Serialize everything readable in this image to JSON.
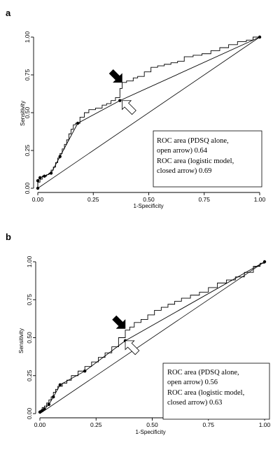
{
  "chart_data": [
    {
      "panel_label": "a",
      "type": "line",
      "xlabel": "1-Specificity",
      "ylabel": "Sensitivity",
      "xlim": [
        0,
        1
      ],
      "ylim": [
        0,
        1
      ],
      "xticks": [
        "0.00",
        "0.25",
        "0.50",
        "0.75",
        "1.00"
      ],
      "yticks": [
        "0.00",
        "0.25",
        "0.50",
        "0.75",
        "1.00"
      ],
      "annotation_lines": [
        "ROC area (PDSQ alone,",
        "open arrow) 0.64",
        "ROC area (logistic model,",
        "closed arrow) 0.69"
      ],
      "series": [
        {
          "style": "step",
          "points": [
            [
              0,
              0
            ],
            [
              0,
              0.04
            ],
            [
              0.01,
              0.04
            ],
            [
              0.01,
              0.06
            ],
            [
              0.02,
              0.06
            ],
            [
              0.02,
              0.08
            ],
            [
              0.03,
              0.08
            ],
            [
              0.04,
              0.09
            ],
            [
              0.05,
              0.1
            ],
            [
              0.06,
              0.12
            ],
            [
              0.07,
              0.14
            ],
            [
              0.08,
              0.17
            ],
            [
              0.09,
              0.2
            ],
            [
              0.1,
              0.23
            ],
            [
              0.11,
              0.26
            ],
            [
              0.12,
              0.29
            ],
            [
              0.13,
              0.32
            ],
            [
              0.14,
              0.36
            ],
            [
              0.15,
              0.39
            ],
            [
              0.16,
              0.42
            ],
            [
              0.17,
              0.43
            ],
            [
              0.19,
              0.47
            ],
            [
              0.21,
              0.5
            ],
            [
              0.23,
              0.52
            ],
            [
              0.26,
              0.53
            ],
            [
              0.29,
              0.55
            ],
            [
              0.31,
              0.56
            ],
            [
              0.33,
              0.58
            ],
            [
              0.35,
              0.6
            ],
            [
              0.37,
              0.66
            ],
            [
              0.38,
              0.7
            ],
            [
              0.4,
              0.71
            ],
            [
              0.43,
              0.73
            ],
            [
              0.45,
              0.74
            ],
            [
              0.48,
              0.77
            ],
            [
              0.51,
              0.8
            ],
            [
              0.54,
              0.81
            ],
            [
              0.57,
              0.82
            ],
            [
              0.6,
              0.83
            ],
            [
              0.63,
              0.84
            ],
            [
              0.66,
              0.87
            ],
            [
              0.7,
              0.88
            ],
            [
              0.74,
              0.89
            ],
            [
              0.78,
              0.91
            ],
            [
              0.82,
              0.93
            ],
            [
              0.86,
              0.95
            ],
            [
              0.9,
              0.97
            ],
            [
              0.94,
              0.98
            ],
            [
              0.97,
              1.0
            ],
            [
              1.0,
              1.0
            ]
          ]
        },
        {
          "style": "markers",
          "points": [
            [
              0,
              0
            ],
            [
              0,
              0.05
            ],
            [
              0.01,
              0.07
            ],
            [
              0.03,
              0.08
            ],
            [
              0.06,
              0.1
            ],
            [
              0.1,
              0.21
            ],
            [
              0.18,
              0.43
            ],
            [
              0.37,
              0.58
            ],
            [
              1,
              1
            ]
          ]
        },
        {
          "style": "reference",
          "points": [
            [
              0,
              0
            ],
            [
              1,
              1
            ]
          ]
        }
      ],
      "arrows": [
        {
          "kind": "closed",
          "points_to": [
            0.38,
            0.7
          ]
        },
        {
          "kind": "open",
          "points_to": [
            0.38,
            0.58
          ]
        }
      ]
    },
    {
      "panel_label": "b",
      "type": "line",
      "xlabel": "1-Specificity",
      "ylabel": "Sensitivity",
      "xlim": [
        0,
        1
      ],
      "ylim": [
        0,
        1
      ],
      "xticks": [
        "0.00",
        "0.25",
        "0.50",
        "0.75",
        "1.00"
      ],
      "yticks": [
        "0.00",
        "0.25",
        "0.50",
        "0.75",
        "1.00"
      ],
      "annotation_lines": [
        "ROC area (PDSQ alone,",
        "open arrow) 0.56",
        "ROC area (logistic model,",
        "closed arrow) 0.63"
      ],
      "series": [
        {
          "style": "step",
          "points": [
            [
              0,
              0
            ],
            [
              0,
              0.02
            ],
            [
              0.01,
              0.02
            ],
            [
              0.01,
              0.04
            ],
            [
              0.02,
              0.05
            ],
            [
              0.03,
              0.07
            ],
            [
              0.04,
              0.09
            ],
            [
              0.05,
              0.11
            ],
            [
              0.06,
              0.14
            ],
            [
              0.07,
              0.16
            ],
            [
              0.08,
              0.18
            ],
            [
              0.1,
              0.2
            ],
            [
              0.12,
              0.22
            ],
            [
              0.14,
              0.25
            ],
            [
              0.17,
              0.28
            ],
            [
              0.2,
              0.31
            ],
            [
              0.23,
              0.34
            ],
            [
              0.26,
              0.37
            ],
            [
              0.29,
              0.4
            ],
            [
              0.32,
              0.44
            ],
            [
              0.35,
              0.5
            ],
            [
              0.38,
              0.55
            ],
            [
              0.4,
              0.57
            ],
            [
              0.42,
              0.6
            ],
            [
              0.45,
              0.62
            ],
            [
              0.48,
              0.65
            ],
            [
              0.51,
              0.68
            ],
            [
              0.54,
              0.7
            ],
            [
              0.57,
              0.72
            ],
            [
              0.6,
              0.74
            ],
            [
              0.63,
              0.76
            ],
            [
              0.67,
              0.78
            ],
            [
              0.71,
              0.8
            ],
            [
              0.75,
              0.83
            ],
            [
              0.79,
              0.86
            ],
            [
              0.83,
              0.88
            ],
            [
              0.87,
              0.9
            ],
            [
              0.91,
              0.93
            ],
            [
              0.95,
              0.97
            ],
            [
              0.98,
              0.99
            ],
            [
              1.0,
              1.0
            ]
          ]
        },
        {
          "style": "markers",
          "points": [
            [
              0,
              0.01
            ],
            [
              0.01,
              0.02
            ],
            [
              0.02,
              0.03
            ],
            [
              0.04,
              0.06
            ],
            [
              0.06,
              0.11
            ],
            [
              0.09,
              0.19
            ],
            [
              0.2,
              0.28
            ],
            [
              0.38,
              0.48
            ],
            [
              1,
              1
            ]
          ]
        },
        {
          "style": "reference",
          "points": [
            [
              0,
              0
            ],
            [
              1,
              1
            ]
          ]
        }
      ],
      "arrows": [
        {
          "kind": "closed",
          "points_to": [
            0.38,
            0.56
          ]
        },
        {
          "kind": "open",
          "points_to": [
            0.38,
            0.48
          ]
        }
      ]
    }
  ]
}
